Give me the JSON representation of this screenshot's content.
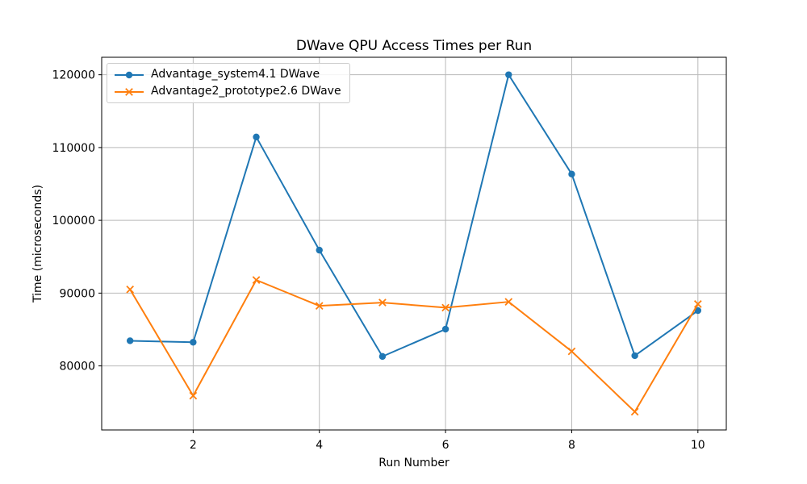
{
  "chart_data": {
    "type": "line",
    "title": "DWave QPU Access Times per Run",
    "xlabel": "Run Number",
    "ylabel": "Time (microseconds)",
    "x": [
      1,
      2,
      3,
      4,
      5,
      6,
      7,
      8,
      9,
      10
    ],
    "series": [
      {
        "name": "Advantage_system4.1 DWave",
        "color": "#1f77b4",
        "marker": "circle",
        "values": [
          83450,
          83250,
          111450,
          95900,
          81300,
          85050,
          120000,
          106350,
          81400,
          87600
        ]
      },
      {
        "name": "Advantage2_prototype2.6 DWave",
        "color": "#ff7f0e",
        "marker": "x",
        "values": [
          90500,
          75900,
          91800,
          88250,
          88700,
          88000,
          88800,
          82000,
          73700,
          88500
        ]
      }
    ],
    "xticks": [
      2,
      4,
      6,
      8,
      10
    ],
    "yticks": [
      80000,
      90000,
      100000,
      110000,
      120000
    ],
    "xlim": [
      0.55,
      10.45
    ],
    "ylim": [
      71200,
      122400
    ],
    "grid": true,
    "grid_color": "#b9b9b9",
    "axis_color": "#000000",
    "background": "#ffffff",
    "legend_position": "upper left"
  }
}
